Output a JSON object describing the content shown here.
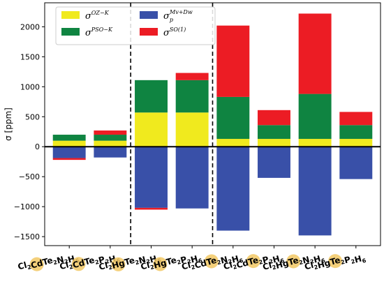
{
  "chart_data": {
    "type": "bar",
    "stacked": true,
    "ylabel": "σ [ppm]",
    "ylim": [
      -1650,
      2400
    ],
    "yticks": [
      -1500,
      -1000,
      -500,
      0,
      500,
      1000,
      1500,
      2000
    ],
    "grid": false,
    "legend_placement": "top-left",
    "highlight_color": "#f2c864",
    "categories": [
      {
        "id": "Cl2CdTe2N2H6",
        "highlight": "Cd",
        "parts": [
          [
            "Cl",
            "2",
            false
          ],
          [
            "Cd",
            "",
            true
          ],
          [
            "Te",
            "2",
            false
          ],
          [
            "N",
            "2",
            false
          ],
          [
            "H",
            "6",
            false
          ]
        ]
      },
      {
        "id": "Cl2CdTe2P2H6",
        "highlight": "Cd",
        "parts": [
          [
            "Cl",
            "2",
            false
          ],
          [
            "Cd",
            "",
            true
          ],
          [
            "Te",
            "2",
            false
          ],
          [
            "P",
            "2",
            false
          ],
          [
            "H",
            "6",
            false
          ]
        ]
      },
      {
        "id": "Cl2HgTe2N2H6",
        "highlight": "Hg",
        "parts": [
          [
            "Cl",
            "2",
            false
          ],
          [
            "Hg",
            "",
            true
          ],
          [
            "Te",
            "2",
            false
          ],
          [
            "N",
            "2",
            false
          ],
          [
            "H",
            "6",
            false
          ]
        ]
      },
      {
        "id": "Cl2HgTe2P2H6",
        "highlight": "Hg",
        "parts": [
          [
            "Cl",
            "2",
            false
          ],
          [
            "Hg",
            "",
            true
          ],
          [
            "Te",
            "2",
            false
          ],
          [
            "P",
            "2",
            false
          ],
          [
            "H",
            "6",
            false
          ]
        ]
      },
      {
        "id": "Cl2CdTe2N2H6",
        "highlight": "Te",
        "parts": [
          [
            "Cl",
            "2",
            false
          ],
          [
            "Cd",
            "",
            false
          ],
          [
            "Te",
            "2",
            true
          ],
          [
            "N",
            "2",
            false
          ],
          [
            "H",
            "6",
            false
          ]
        ]
      },
      {
        "id": "Cl2CdTe2P2H6",
        "highlight": "Te",
        "parts": [
          [
            "Cl",
            "2",
            false
          ],
          [
            "Cd",
            "",
            false
          ],
          [
            "Te",
            "2",
            true
          ],
          [
            "P",
            "2",
            false
          ],
          [
            "H",
            "6",
            false
          ]
        ]
      },
      {
        "id": "Cl2HgTe2N2H6",
        "highlight": "Te",
        "parts": [
          [
            "Cl",
            "2",
            false
          ],
          [
            "Hg",
            "",
            false
          ],
          [
            "Te",
            "2",
            true
          ],
          [
            "N",
            "2",
            false
          ],
          [
            "H",
            "6",
            false
          ]
        ]
      },
      {
        "id": "Cl2HgTe2P2H6",
        "highlight": "Te",
        "parts": [
          [
            "Cl",
            "2",
            false
          ],
          [
            "Hg",
            "",
            false
          ],
          [
            "Te",
            "2",
            true
          ],
          [
            "P",
            "2",
            false
          ],
          [
            "H",
            "6",
            false
          ]
        ]
      }
    ],
    "series": [
      {
        "key": "oz",
        "name": "σ",
        "sup": "OZ−K",
        "sub": "",
        "color": "#f0ea1e",
        "values": [
          100,
          100,
          570,
          570,
          130,
          130,
          130,
          130
        ]
      },
      {
        "key": "pso",
        "name": "σ",
        "sup": "PSO−K",
        "sub": "",
        "color": "#0f8441",
        "values": [
          100,
          100,
          540,
          540,
          700,
          230,
          750,
          230
        ]
      },
      {
        "key": "mv",
        "name": "σ",
        "sup": "Mv+Dw",
        "sub": "p",
        "color": "#3950a8",
        "values": [
          -190,
          -180,
          -1020,
          -1030,
          -1400,
          -520,
          -1480,
          -540
        ]
      },
      {
        "key": "so",
        "name": "σ",
        "sup": "SO(1)",
        "sub": "",
        "color": "#ec1c24",
        "values": [
          -30,
          70,
          -30,
          120,
          1190,
          250,
          1340,
          220
        ]
      }
    ],
    "separators_after_category": [
      1,
      3
    ]
  }
}
